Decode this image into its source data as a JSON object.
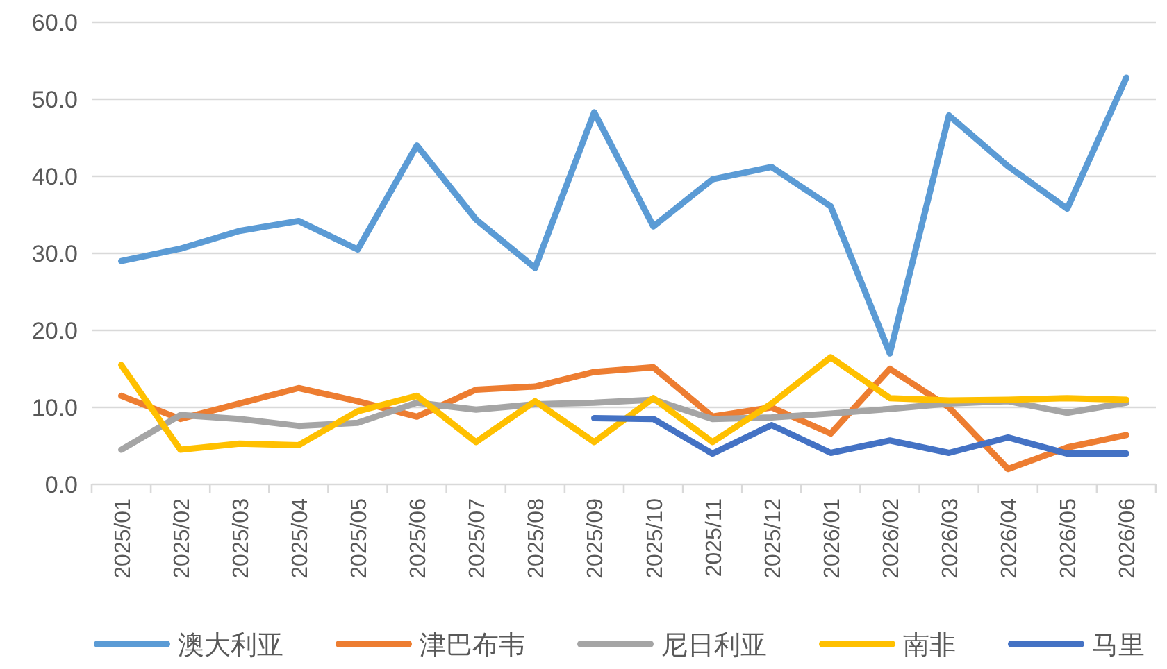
{
  "chart_data": {
    "type": "line",
    "categories": [
      "2025/01",
      "2025/02",
      "2025/03",
      "2025/04",
      "2025/05",
      "2025/06",
      "2025/07",
      "2025/08",
      "2025/09",
      "2025/10",
      "2025/11",
      "2025/12",
      "2026/01",
      "2026/02",
      "2026/03",
      "2026/04",
      "2026/05",
      "2026/06"
    ],
    "series": [
      {
        "name": "澳大利亚",
        "color": "#5b9bd5",
        "values": [
          29.0,
          30.6,
          32.9,
          34.2,
          30.5,
          44.0,
          34.4,
          28.1,
          48.3,
          33.5,
          39.6,
          41.2,
          36.1,
          17.0,
          47.9,
          41.3,
          35.8,
          52.8
        ]
      },
      {
        "name": "津巴布韦",
        "color": "#ed7d31",
        "values": [
          11.5,
          8.5,
          10.5,
          12.5,
          10.8,
          8.8,
          12.3,
          12.7,
          14.6,
          15.2,
          8.8,
          10.0,
          6.6,
          15.0,
          10.0,
          2.0,
          4.8,
          6.4
        ]
      },
      {
        "name": "尼日利亚",
        "color": "#a5a5a5",
        "values": [
          4.5,
          9.0,
          8.5,
          7.6,
          8.0,
          10.6,
          9.7,
          10.4,
          10.6,
          11.0,
          8.5,
          8.7,
          9.2,
          9.8,
          10.5,
          10.8,
          9.3,
          10.6
        ]
      },
      {
        "name": "南非",
        "color": "#ffc000",
        "values": [
          15.5,
          4.5,
          5.3,
          5.1,
          9.5,
          11.5,
          5.5,
          10.8,
          5.5,
          11.2,
          5.5,
          10.5,
          16.5,
          11.2,
          10.9,
          11.0,
          11.2,
          11.0
        ]
      },
      {
        "name": "马里",
        "color": "#4472c4",
        "values": [
          null,
          null,
          null,
          null,
          null,
          null,
          null,
          null,
          8.6,
          8.5,
          4.0,
          7.7,
          4.1,
          5.7,
          4.1,
          6.1,
          4.0,
          4.0
        ]
      }
    ],
    "ylim": [
      0,
      60
    ],
    "yticks": [
      {
        "value": 0,
        "label": "0.0"
      },
      {
        "value": 10,
        "label": "10.0"
      },
      {
        "value": 20,
        "label": "20.0"
      },
      {
        "value": 30,
        "label": "30.0"
      },
      {
        "value": 40,
        "label": "40.0"
      },
      {
        "value": 50,
        "label": "50.0"
      },
      {
        "value": 60,
        "label": "60.0"
      }
    ],
    "grid": "y",
    "legend": "bottom",
    "marker": "none",
    "line_style": "solid"
  }
}
